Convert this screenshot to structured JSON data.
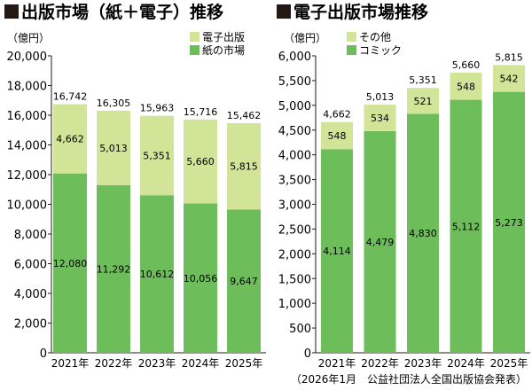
{
  "source": "（2026年1月　公益社団法人全国出版協会発表）",
  "colors": {
    "print": "#6dbd5b",
    "digital": "#d2e498",
    "sq": "#231815"
  },
  "chart_data": [
    {
      "type": "bar",
      "stacked": true,
      "title": "出版市場（紙＋電子）推移",
      "unit_label": "（億円）",
      "categories": [
        "2021年",
        "2022年",
        "2023年",
        "2024年",
        "2025年"
      ],
      "series": [
        {
          "name": "紙の市場",
          "values": [
            12080,
            11292,
            10612,
            10056,
            9647
          ],
          "value_labels": [
            "12,080",
            "11,292",
            "10,612",
            "10,056",
            "9,647"
          ]
        },
        {
          "name": "電子出版",
          "values": [
            4662,
            5013,
            5351,
            5660,
            5815
          ],
          "value_labels": [
            "4,662",
            "5,013",
            "5,351",
            "5,660",
            "5,815"
          ]
        }
      ],
      "totals": [
        16742,
        16305,
        15963,
        15716,
        15462
      ],
      "total_labels": [
        "16,742",
        "16,305",
        "15,963",
        "15,716",
        "15,462"
      ],
      "yticks": [
        0,
        2000,
        4000,
        6000,
        8000,
        10000,
        12000,
        14000,
        16000,
        18000,
        20000
      ],
      "ytick_labels": [
        "0",
        "2,000",
        "4,000",
        "6,000",
        "8,000",
        "10,000",
        "12,000",
        "14,000",
        "16,000",
        "18,000",
        "20,000"
      ],
      "ylim": [
        0,
        20000
      ],
      "legend": [
        "電子出版",
        "紙の市場"
      ],
      "legend_position": "top-right",
      "grid": false
    },
    {
      "type": "bar",
      "stacked": true,
      "title": "電子出版市場推移",
      "unit_label": "（億円）",
      "categories": [
        "2021年",
        "2022年",
        "2023年",
        "2024年",
        "2025年"
      ],
      "series": [
        {
          "name": "コミック",
          "values": [
            4114,
            4479,
            4830,
            5112,
            5273
          ],
          "value_labels": [
            "4,114",
            "4,479",
            "4,830",
            "5,112",
            "5,273"
          ]
        },
        {
          "name": "その他",
          "values": [
            548,
            534,
            521,
            548,
            542
          ],
          "value_labels": [
            "548",
            "534",
            "521",
            "548",
            "542"
          ]
        }
      ],
      "totals": [
        4662,
        5013,
        5351,
        5660,
        5815
      ],
      "total_labels": [
        "4,662",
        "5,013",
        "5,351",
        "5,660",
        "5,815"
      ],
      "yticks": [
        0,
        500,
        1000,
        1500,
        2000,
        2500,
        3000,
        3500,
        4000,
        4500,
        5000,
        5500,
        6000
      ],
      "ytick_labels": [
        "0",
        "500",
        "1,000",
        "1,500",
        "2,000",
        "2,500",
        "3,000",
        "3,500",
        "4,000",
        "4,500",
        "5,000",
        "5,500",
        "6,000"
      ],
      "ylim": [
        0,
        6000
      ],
      "legend": [
        "その他",
        "コミック"
      ],
      "legend_position": "top-right",
      "grid": false
    }
  ]
}
